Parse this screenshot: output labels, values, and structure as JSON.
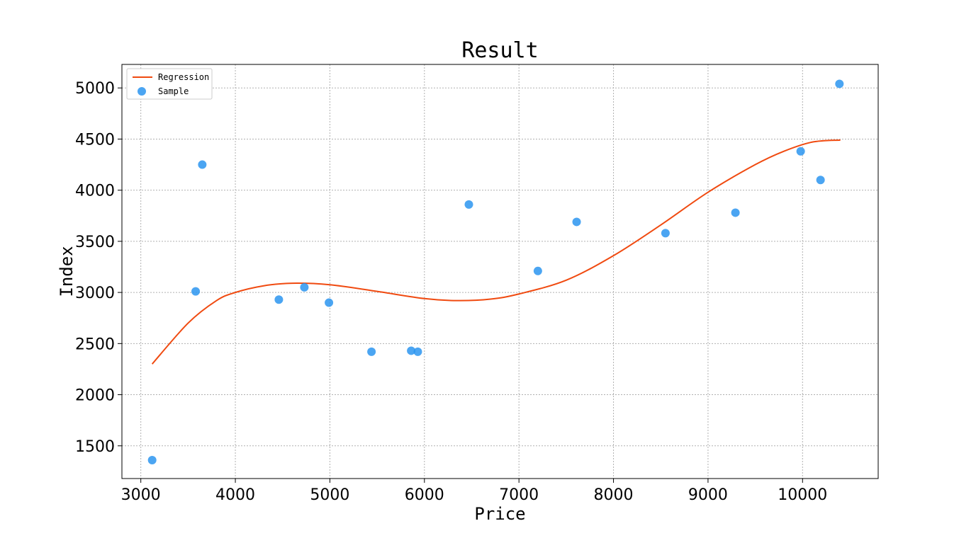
{
  "chart_data": {
    "type": "scatter",
    "title": "Result",
    "xlabel": "Price",
    "ylabel": "Index",
    "xlim": [
      2800,
      10800
    ],
    "ylim": [
      1180,
      5230
    ],
    "xticks": [
      3000,
      4000,
      5000,
      6000,
      7000,
      8000,
      9000,
      10000
    ],
    "yticks": [
      1500,
      2000,
      2500,
      3000,
      3500,
      4000,
      4500,
      5000
    ],
    "grid": true,
    "legend_position": "top-left",
    "colors": {
      "regression": "#f04a10",
      "sample": "#2b95f0"
    },
    "series": [
      {
        "name": "Regression",
        "kind": "line",
        "x": [
          3120,
          3500,
          3800,
          4000,
          4300,
          4600,
          5000,
          5500,
          6000,
          6350,
          6700,
          7000,
          7500,
          8000,
          8500,
          9000,
          9500,
          9800,
          10100,
          10400
        ],
        "y": [
          2300,
          2700,
          2920,
          3000,
          3065,
          3090,
          3075,
          3010,
          2940,
          2920,
          2935,
          2985,
          3120,
          3360,
          3660,
          3980,
          4250,
          4380,
          4470,
          4490
        ]
      },
      {
        "name": "Sample",
        "kind": "scatter",
        "x": [
          3120,
          3580,
          3650,
          4460,
          4730,
          4990,
          5440,
          5860,
          5930,
          6470,
          7200,
          7610,
          8550,
          9290,
          9980,
          10190,
          10390
        ],
        "y": [
          1360,
          3010,
          4250,
          2930,
          3050,
          2900,
          2420,
          2430,
          2420,
          3860,
          3210,
          3690,
          3580,
          3780,
          4380,
          4100,
          5040
        ]
      }
    ]
  }
}
